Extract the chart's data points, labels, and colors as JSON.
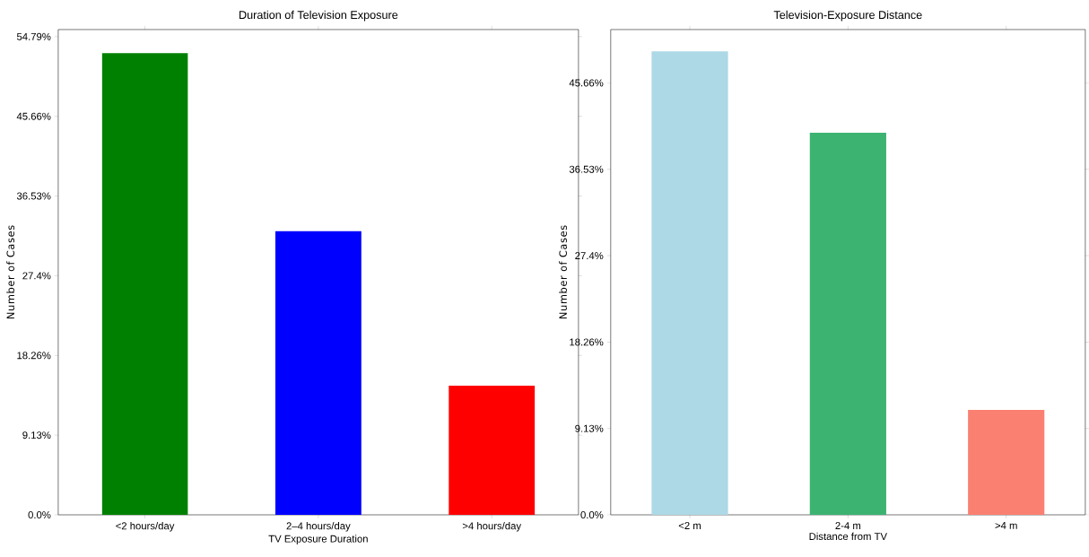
{
  "chart_data": [
    {
      "type": "bar",
      "title": "Duration of Television Exposure",
      "xlabel": "TV Exposure Duration",
      "ylabel": "Number of Cases",
      "categories": [
        "<2 hours/day",
        "2–4 hours/day",
        ">4 hours/day"
      ],
      "values": [
        52.9,
        32.5,
        14.8
      ],
      "colors": [
        "#008000",
        "#0000ff",
        "#ff0000"
      ],
      "ylim": [
        0,
        55.6
      ],
      "yticks": [
        {
          "value": 0,
          "label": "0.0%"
        },
        {
          "value": 9.13,
          "label": "9.13%"
        },
        {
          "value": 18.26,
          "label": "18.26%"
        },
        {
          "value": 27.4,
          "label": "27.4%"
        },
        {
          "value": 36.53,
          "label": "36.53%"
        },
        {
          "value": 45.66,
          "label": "45.66%"
        },
        {
          "value": 54.79,
          "label": "54.79%"
        }
      ]
    },
    {
      "type": "bar",
      "title": "Television-Exposure Distance",
      "xlabel": "Distance from TV",
      "ylabel": "Number of Cases",
      "categories": [
        "<2 m",
        "2-4 m",
        ">4 m"
      ],
      "values": [
        49.0,
        40.4,
        11.1
      ],
      "colors": [
        "#add8e6",
        "#3cb371",
        "#fa8072"
      ],
      "ylim": [
        0,
        51.3
      ],
      "yticks": [
        {
          "value": 0,
          "label": "0.0%"
        },
        {
          "value": 9.13,
          "label": "9.13%"
        },
        {
          "value": 18.26,
          "label": "18.26%"
        },
        {
          "value": 27.4,
          "label": "27.4%"
        },
        {
          "value": 36.53,
          "label": "36.53%"
        },
        {
          "value": 45.66,
          "label": "45.66%"
        }
      ]
    }
  ]
}
